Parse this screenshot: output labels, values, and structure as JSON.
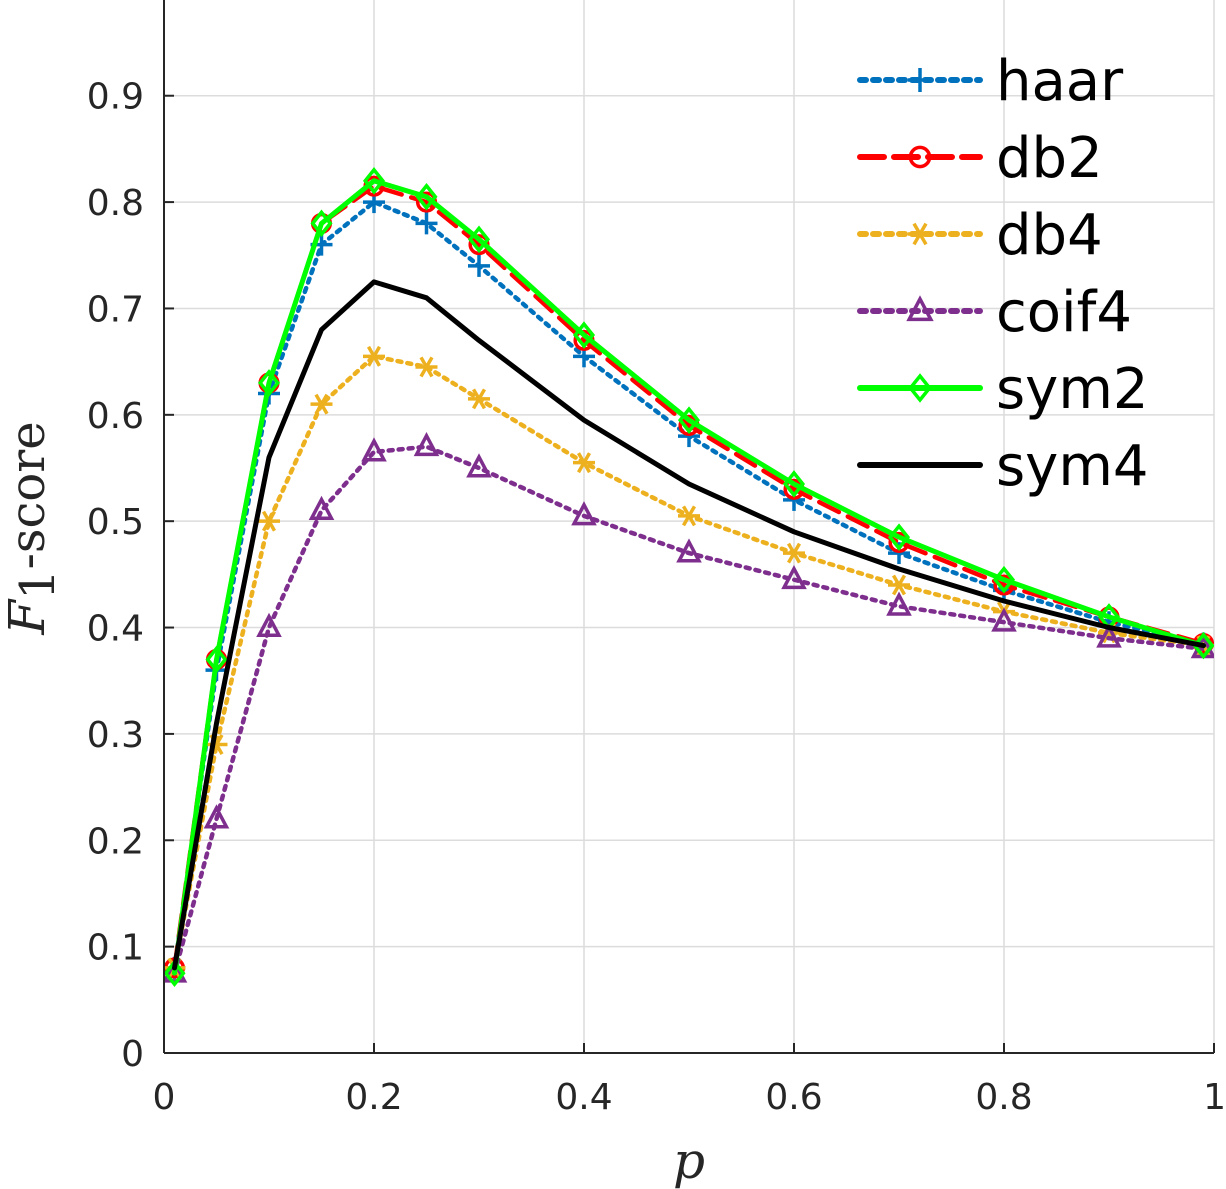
{
  "chart_data": {
    "type": "line",
    "xlabel": "p",
    "ylabel": {
      "var": "F",
      "sub": "1",
      "rest": "-score"
    },
    "xlim": [
      0,
      1
    ],
    "ylim": [
      0,
      0.99
    ],
    "xticks": [
      0,
      0.2,
      0.4,
      0.6,
      0.8,
      1
    ],
    "xtick_labels": [
      "0",
      "0.2",
      "0.4",
      "0.6",
      "0.8",
      "1"
    ],
    "yticks": [
      0,
      0.1,
      0.2,
      0.3,
      0.4,
      0.5,
      0.6,
      0.7,
      0.8,
      0.9
    ],
    "ytick_labels": [
      "0",
      "0.1",
      "0.2",
      "0.3",
      "0.4",
      "0.5",
      "0.6",
      "0.7",
      "0.8",
      "0.9"
    ],
    "grid": true,
    "legend_position": "top-right",
    "series": [
      {
        "name": "haar",
        "color": "#0072BD",
        "dash": "dotted",
        "marker": "plus",
        "x": [
          0.01,
          0.05,
          0.1,
          0.15,
          0.2,
          0.25,
          0.3,
          0.4,
          0.5,
          0.6,
          0.7,
          0.8,
          0.9,
          0.99
        ],
        "y": [
          0.08,
          0.36,
          0.62,
          0.76,
          0.8,
          0.78,
          0.74,
          0.655,
          0.58,
          0.52,
          0.47,
          0.435,
          0.405,
          0.385
        ]
      },
      {
        "name": "db2",
        "color": "#FF0000",
        "dash": "dashed",
        "marker": "circle",
        "x": [
          0.01,
          0.05,
          0.1,
          0.15,
          0.2,
          0.25,
          0.3,
          0.4,
          0.5,
          0.6,
          0.7,
          0.8,
          0.9,
          0.99
        ],
        "y": [
          0.08,
          0.37,
          0.63,
          0.78,
          0.815,
          0.8,
          0.76,
          0.67,
          0.59,
          0.53,
          0.48,
          0.44,
          0.41,
          0.385
        ]
      },
      {
        "name": "db4",
        "color": "#EDB120",
        "dash": "dotted",
        "marker": "asterisk",
        "x": [
          0.01,
          0.05,
          0.1,
          0.15,
          0.2,
          0.25,
          0.3,
          0.4,
          0.5,
          0.6,
          0.7,
          0.8,
          0.9,
          0.99
        ],
        "y": [
          0.08,
          0.29,
          0.5,
          0.61,
          0.655,
          0.645,
          0.615,
          0.555,
          0.505,
          0.47,
          0.44,
          0.415,
          0.395,
          0.383
        ]
      },
      {
        "name": "coif4",
        "color": "#7E2F8E",
        "dash": "dotted",
        "marker": "triangle",
        "x": [
          0.01,
          0.05,
          0.1,
          0.15,
          0.2,
          0.25,
          0.3,
          0.4,
          0.5,
          0.6,
          0.7,
          0.8,
          0.9,
          0.99
        ],
        "y": [
          0.075,
          0.22,
          0.4,
          0.51,
          0.565,
          0.57,
          0.55,
          0.505,
          0.47,
          0.445,
          0.42,
          0.405,
          0.39,
          0.38
        ]
      },
      {
        "name": "sym2",
        "color": "#00FF00",
        "dash": "solid",
        "marker": "diamond",
        "x": [
          0.01,
          0.05,
          0.1,
          0.15,
          0.2,
          0.25,
          0.3,
          0.4,
          0.5,
          0.6,
          0.7,
          0.8,
          0.9,
          0.99
        ],
        "y": [
          0.075,
          0.37,
          0.63,
          0.78,
          0.82,
          0.805,
          0.765,
          0.675,
          0.595,
          0.535,
          0.485,
          0.445,
          0.41,
          0.383
        ]
      },
      {
        "name": "sym4",
        "color": "#000000",
        "dash": "solid",
        "marker": "none",
        "x": [
          0.01,
          0.05,
          0.1,
          0.15,
          0.2,
          0.25,
          0.3,
          0.4,
          0.5,
          0.6,
          0.7,
          0.8,
          0.9,
          0.99
        ],
        "y": [
          0.08,
          0.31,
          0.56,
          0.68,
          0.725,
          0.71,
          0.67,
          0.595,
          0.535,
          0.49,
          0.455,
          0.425,
          0.4,
          0.383
        ]
      }
    ]
  }
}
